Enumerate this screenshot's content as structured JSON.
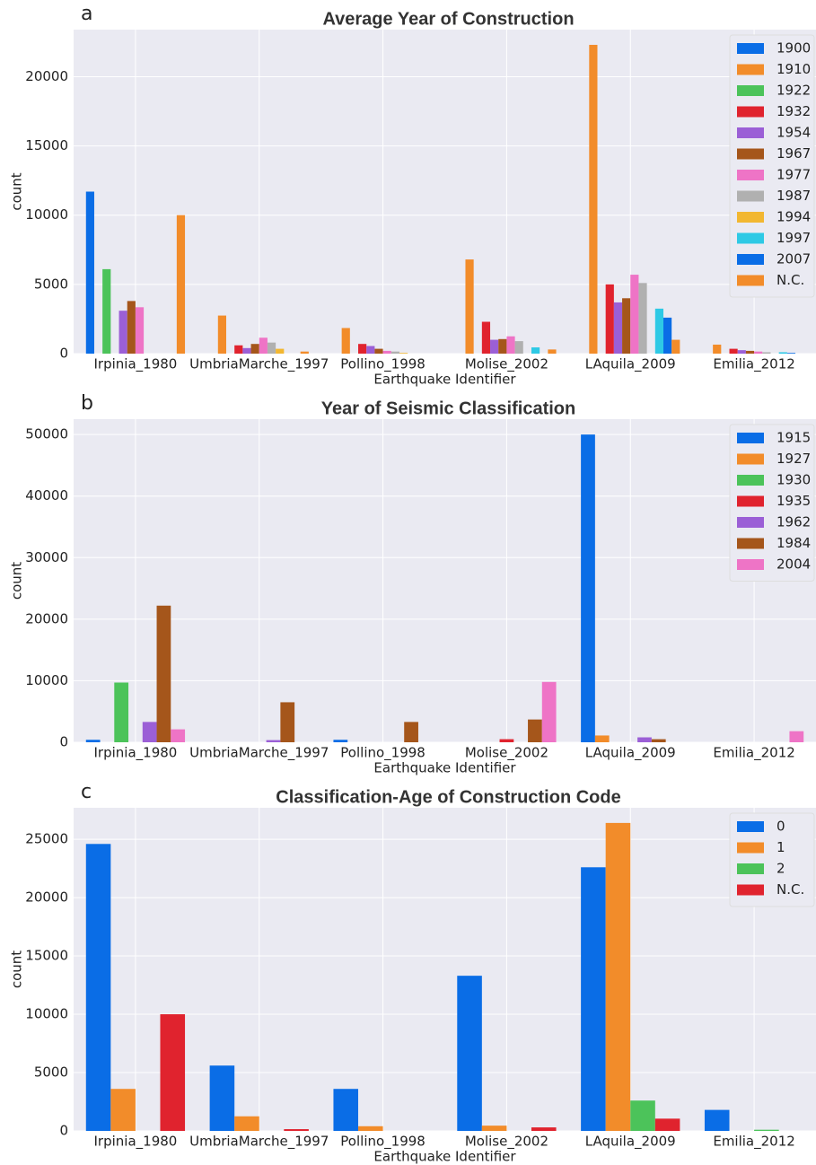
{
  "chart_data": [
    {
      "type": "bar",
      "label": "a",
      "title": "Average Year of Construction",
      "x_label": "Earthquake Identifier",
      "y_label": "count",
      "categories": [
        "Irpinia_1980",
        "UmbriaMarche_1997",
        "Pollino_1998",
        "Molise_2002",
        "LAquila_2009",
        "Emilia_2012"
      ],
      "series": [
        {
          "name": "1900",
          "color": "#0a6de6",
          "values": [
            11700,
            0,
            0,
            0,
            0,
            0
          ]
        },
        {
          "name": "1910",
          "color": "#f28c2a",
          "values": [
            0,
            2750,
            1850,
            6800,
            22300,
            650
          ]
        },
        {
          "name": "1922",
          "color": "#4cc35a",
          "values": [
            6100,
            0,
            0,
            0,
            0,
            0
          ]
        },
        {
          "name": "1932",
          "color": "#e0232e",
          "values": [
            0,
            600,
            700,
            2300,
            5000,
            350
          ]
        },
        {
          "name": "1954",
          "color": "#9b5fd6",
          "values": [
            3100,
            400,
            550,
            1000,
            3700,
            250
          ]
        },
        {
          "name": "1967",
          "color": "#a5561b",
          "values": [
            3800,
            700,
            350,
            1050,
            4000,
            200
          ]
        },
        {
          "name": "1977",
          "color": "#ee74c6",
          "values": [
            3350,
            1150,
            200,
            1250,
            5700,
            150
          ]
        },
        {
          "name": "1987",
          "color": "#b0b0b0",
          "values": [
            0,
            800,
            150,
            900,
            5100,
            100
          ]
        },
        {
          "name": "1994",
          "color": "#f2b731",
          "values": [
            0,
            350,
            50,
            0,
            0,
            0
          ]
        },
        {
          "name": "1997",
          "color": "#2ec9e5",
          "values": [
            0,
            0,
            0,
            450,
            3250,
            100
          ]
        },
        {
          "name": "2007",
          "color": "#0a6de6",
          "values": [
            0,
            0,
            0,
            0,
            2600,
            50
          ]
        },
        {
          "name": "N.C.",
          "color": "#f28c2a",
          "values": [
            10000,
            150,
            0,
            300,
            1000,
            0
          ]
        }
      ],
      "ylim": [
        0,
        23400
      ],
      "yticks": [
        0,
        5000,
        10000,
        15000,
        20000
      ],
      "grid": true,
      "legend": "upper right"
    },
    {
      "type": "bar",
      "label": "b",
      "title": "Year of Seismic Classification",
      "x_label": "Earthquake Identifier",
      "y_label": "count",
      "categories": [
        "Irpinia_1980",
        "UmbriaMarche_1997",
        "Pollino_1998",
        "Molise_2002",
        "LAquila_2009",
        "Emilia_2012"
      ],
      "series": [
        {
          "name": "1915",
          "color": "#0a6de6",
          "values": [
            400,
            0,
            400,
            0,
            50000,
            0
          ]
        },
        {
          "name": "1927",
          "color": "#f28c2a",
          "values": [
            0,
            0,
            0,
            0,
            1100,
            0
          ]
        },
        {
          "name": "1930",
          "color": "#4cc35a",
          "values": [
            9700,
            0,
            0,
            0,
            0,
            0
          ]
        },
        {
          "name": "1935",
          "color": "#e0232e",
          "values": [
            0,
            0,
            0,
            500,
            0,
            0
          ]
        },
        {
          "name": "1962",
          "color": "#9b5fd6",
          "values": [
            3300,
            350,
            0,
            0,
            800,
            0
          ]
        },
        {
          "name": "1984",
          "color": "#a5561b",
          "values": [
            22200,
            6500,
            3300,
            3700,
            500,
            0
          ]
        },
        {
          "name": "2004",
          "color": "#ee74c6",
          "values": [
            2100,
            0,
            0,
            9800,
            0,
            1800
          ]
        }
      ],
      "ylim": [
        0,
        52500
      ],
      "yticks": [
        0,
        10000,
        20000,
        30000,
        40000,
        50000
      ],
      "grid": true,
      "legend": "upper right"
    },
    {
      "type": "bar",
      "label": "c",
      "title": "Classification-Age of Construction Code",
      "x_label": "Earthquake Identifier",
      "y_label": "count",
      "categories": [
        "Irpinia_1980",
        "UmbriaMarche_1997",
        "Pollino_1998",
        "Molise_2002",
        "LAquila_2009",
        "Emilia_2012"
      ],
      "series": [
        {
          "name": "0",
          "color": "#0a6de6",
          "values": [
            24600,
            5600,
            3600,
            13300,
            22600,
            1800
          ]
        },
        {
          "name": "1",
          "color": "#f28c2a",
          "values": [
            3600,
            1250,
            400,
            450,
            26400,
            0
          ]
        },
        {
          "name": "2",
          "color": "#4cc35a",
          "values": [
            0,
            0,
            0,
            0,
            2600,
            100
          ]
        },
        {
          "name": "N.C.",
          "color": "#e0232e",
          "values": [
            10000,
            150,
            0,
            300,
            1050,
            0
          ]
        }
      ],
      "ylim": [
        0,
        27700
      ],
      "yticks": [
        0,
        5000,
        10000,
        15000,
        20000,
        25000
      ],
      "grid": true,
      "legend": "upper right"
    }
  ]
}
